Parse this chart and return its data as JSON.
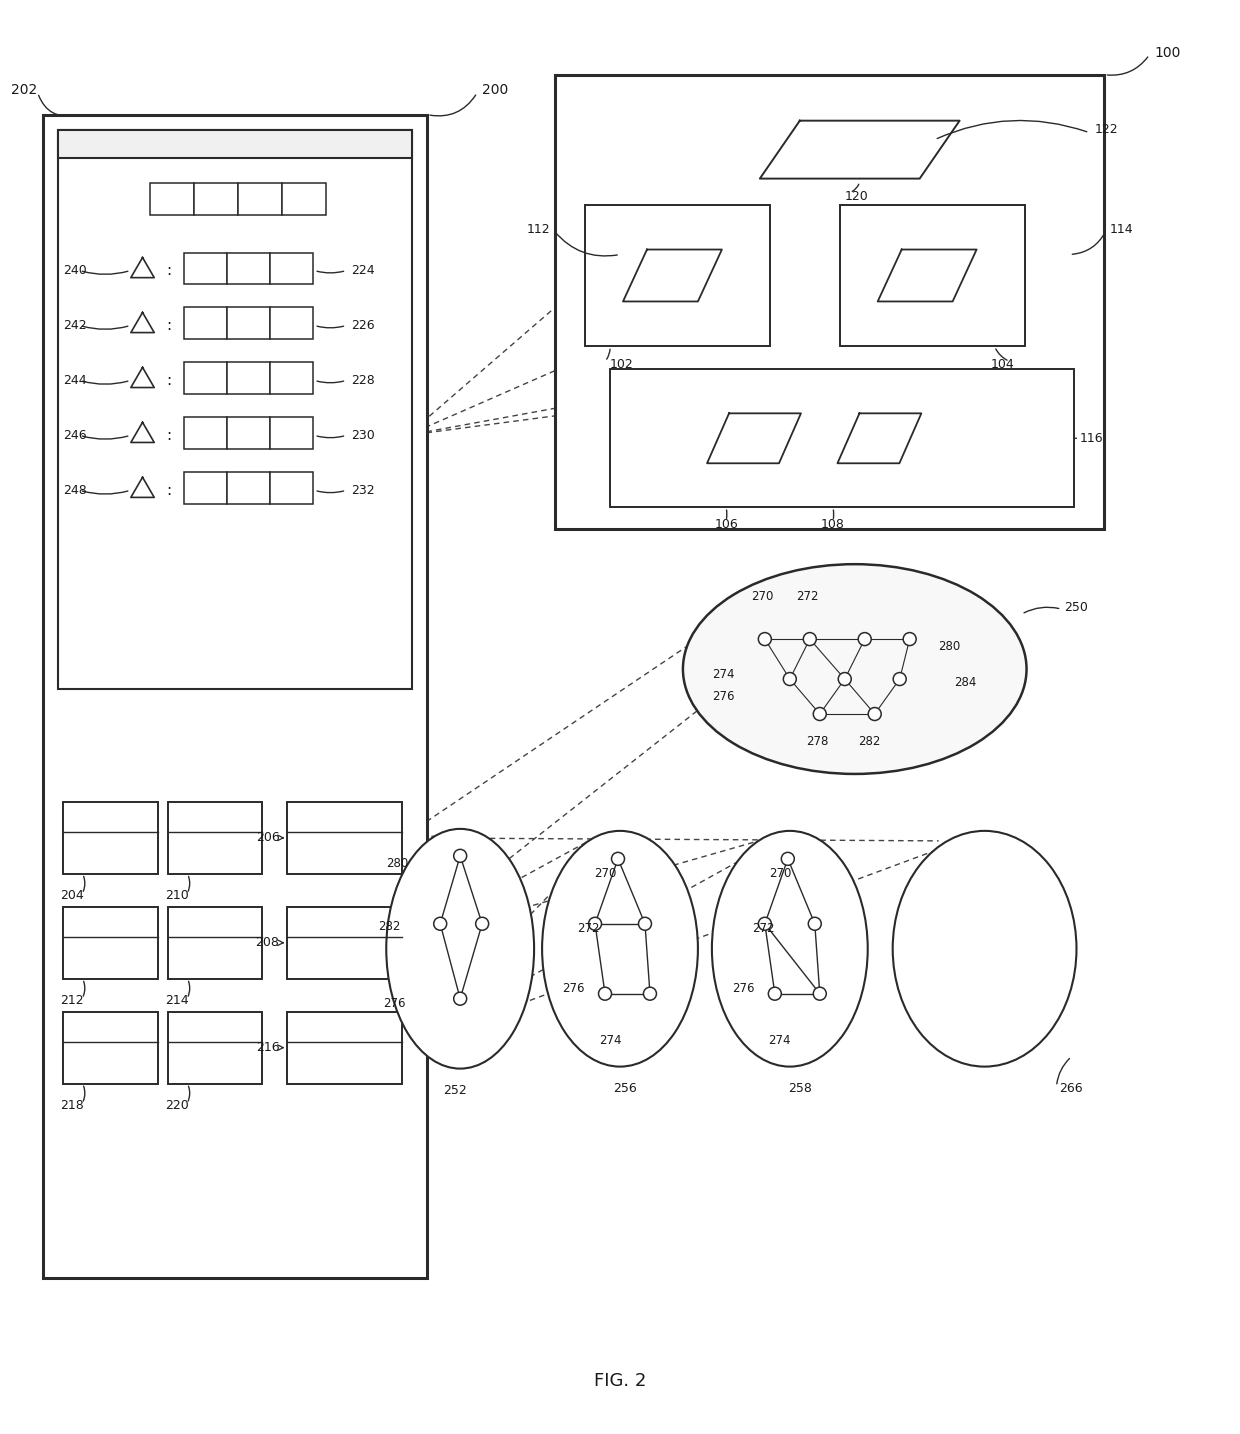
{
  "fig_label": "FIG. 2",
  "bg_color": "#ffffff",
  "line_color": "#2a2a2a",
  "labels": {
    "200": "200",
    "202": "202",
    "100": "100",
    "122": "122",
    "120": "120",
    "112": "112",
    "114": "114",
    "102": "102",
    "104": "104",
    "106": "106",
    "108": "108",
    "116": "116",
    "240": "240",
    "242": "242",
    "244": "244",
    "246": "246",
    "248": "248",
    "224": "224",
    "226": "226",
    "228": "228",
    "230": "230",
    "232": "232",
    "204": "204",
    "206": "206",
    "208": "208",
    "210": "210",
    "212": "212",
    "214": "214",
    "216": "216",
    "218": "218",
    "220": "220",
    "250": "250",
    "252": "252",
    "256": "256",
    "258": "258",
    "266": "266",
    "270": "270",
    "272": "272",
    "274": "274",
    "276": "276",
    "278": "278",
    "280": "280",
    "282": "282",
    "284": "284"
  }
}
